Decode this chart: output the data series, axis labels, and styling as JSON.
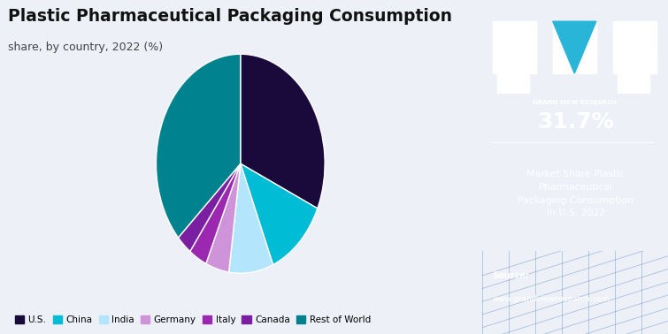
{
  "title_line1": "Plastic Pharmaceutical Packaging Consumption",
  "title_line2": "share, by country, 2022 (%)",
  "labels": [
    "U.S.",
    "China",
    "India",
    "Germany",
    "Italy",
    "Canada",
    "Rest of World"
  ],
  "values": [
    31.7,
    12.0,
    8.5,
    4.5,
    3.5,
    3.0,
    36.8
  ],
  "colors": [
    "#1a0a3c",
    "#00bcd4",
    "#b3e5fc",
    "#ce93d8",
    "#9c27b0",
    "#7b1fa2",
    "#00838f"
  ],
  "startangle": 90,
  "bg_color": "#edf1f7",
  "right_panel_color": "#2d1b5e",
  "stat_value": "31.7%",
  "stat_label": "Market Share Plastic\nPharmaceutical\nPackaging Consumption\nin U.S. 2022",
  "source_label": "Source:",
  "source_url": "www.grandviewresearch.com",
  "gvr_text": "GRAND VIEW RESEARCH"
}
